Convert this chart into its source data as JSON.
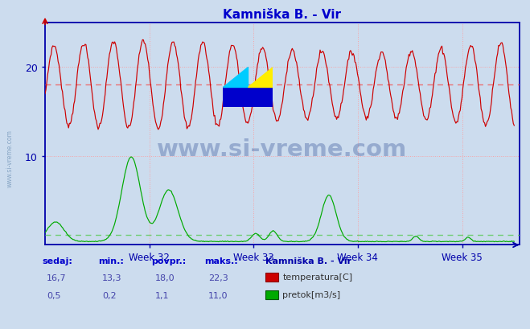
{
  "title": "Kamniška B. - Vir",
  "title_color": "#0000cc",
  "bg_color": "#ccdcee",
  "plot_bg_color": "#ccdcee",
  "outer_bg_color": "#ccdcee",
  "grid_color": "#ff9999",
  "grid_linestyle": ":",
  "ylim": [
    0,
    25
  ],
  "xlim_weeks": [
    31.0,
    35.55
  ],
  "week_ticks": [
    32,
    33,
    34,
    35
  ],
  "temp_avg": 18.0,
  "flow_avg": 1.1,
  "temp_color": "#cc0000",
  "temp_avg_line_color": "#ee6666",
  "flow_color": "#00aa00",
  "flow_avg_line_color": "#66cc66",
  "watermark_text": "www.si-vreme.com",
  "watermark_color": "#1a3a8a",
  "watermark_alpha": 0.3,
  "sidebar_text": "www.si-vreme.com",
  "legend_title": "Kamniška B. - Vir",
  "legend_title_color": "#0000aa",
  "table_headers": [
    "sedaj:",
    "min.:",
    "povpr.:",
    "maks.:"
  ],
  "table_row1": [
    "16,7",
    "13,3",
    "18,0",
    "22,3"
  ],
  "table_row2": [
    "0,5",
    "0,2",
    "1,1",
    "11,0"
  ],
  "table_label1": "temperatura[C]",
  "table_label2": "pretok[m3/s]",
  "n_points": 540,
  "temp_freq_per_week": 3.5,
  "temp_mean": 18.0,
  "temp_amp": 4.3,
  "flow_base": 0.35
}
